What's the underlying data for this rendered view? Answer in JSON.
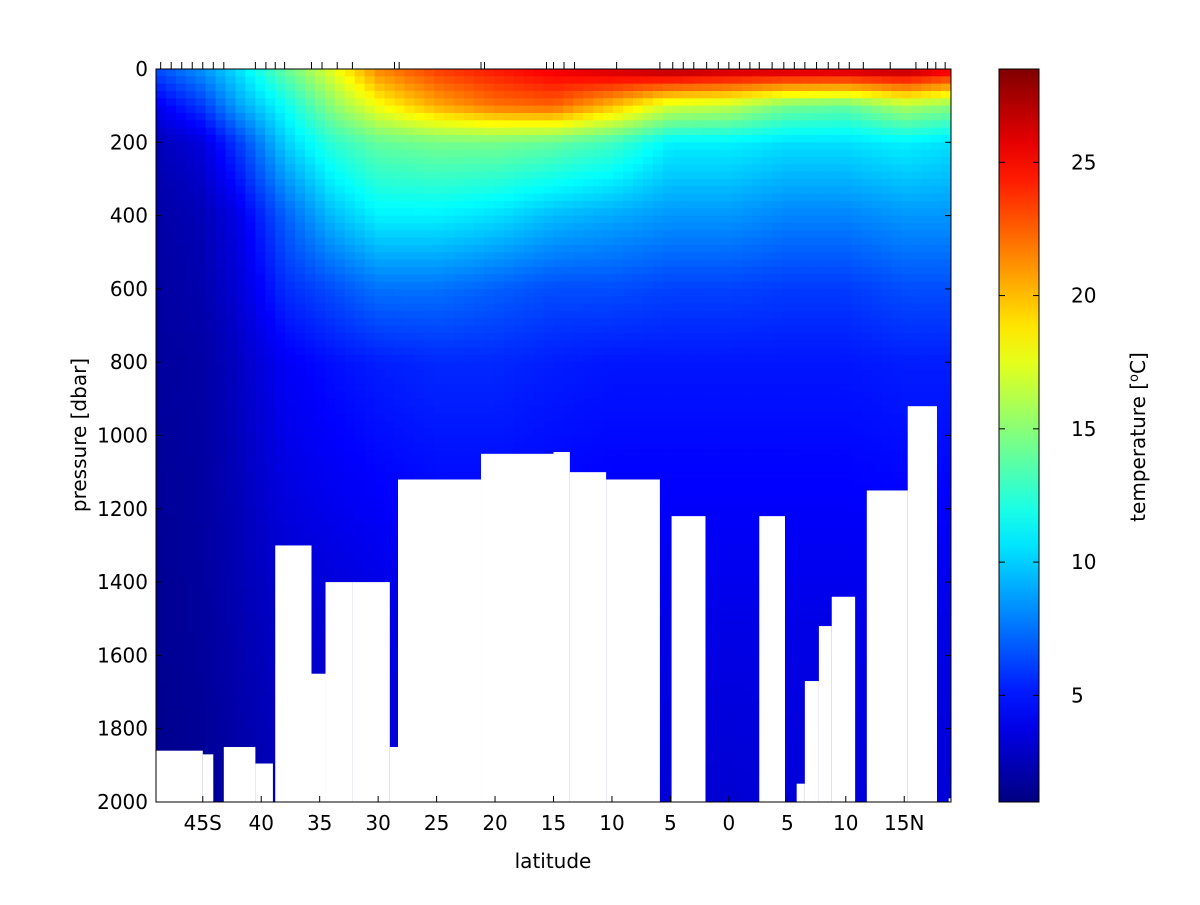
{
  "chart_data": {
    "type": "heatmap",
    "title": "",
    "xlabel": "latitude",
    "ylabel": "pressure [dbar]",
    "colorbar_label": "temperature [°C]",
    "colorbar_label_base": "temperature [",
    "colorbar_label_sup": "o",
    "colorbar_label_tail": "C]",
    "colormap": "jet",
    "y_reversed": true,
    "ylim": [
      0,
      2000
    ],
    "xlim": [
      -49,
      19
    ],
    "clim": [
      1,
      28.5
    ],
    "x_ticks": [
      {
        "value": -45,
        "label": "45S"
      },
      {
        "value": -40,
        "label": "40"
      },
      {
        "value": -35,
        "label": "35"
      },
      {
        "value": -30,
        "label": "30"
      },
      {
        "value": -25,
        "label": "25"
      },
      {
        "value": -20,
        "label": "20"
      },
      {
        "value": -15,
        "label": "15"
      },
      {
        "value": -10,
        "label": "10"
      },
      {
        "value": -5,
        "label": "5"
      },
      {
        "value": 0,
        "label": "0"
      },
      {
        "value": 5,
        "label": "5"
      },
      {
        "value": 10,
        "label": "10"
      },
      {
        "value": 15,
        "label": "15N"
      }
    ],
    "y_ticks": [
      {
        "value": 0,
        "label": "0"
      },
      {
        "value": 200,
        "label": "200"
      },
      {
        "value": 400,
        "label": "400"
      },
      {
        "value": 600,
        "label": "600"
      },
      {
        "value": 800,
        "label": "800"
      },
      {
        "value": 1000,
        "label": "1000"
      },
      {
        "value": 1200,
        "label": "1200"
      },
      {
        "value": 1400,
        "label": "1400"
      },
      {
        "value": 1600,
        "label": "1600"
      },
      {
        "value": 1800,
        "label": "1800"
      },
      {
        "value": 2000,
        "label": "2000"
      }
    ],
    "colorbar_ticks": [
      {
        "value": 5,
        "label": "5"
      },
      {
        "value": 10,
        "label": "10"
      },
      {
        "value": 15,
        "label": "15"
      },
      {
        "value": 20,
        "label": "20"
      },
      {
        "value": 25,
        "label": "25"
      }
    ],
    "station_latitudes": [
      -48.6,
      -47.7,
      -46.8,
      -45.9,
      -45.0,
      -44.1,
      -43.2,
      -40.5,
      -39.6,
      -38.8,
      -38.0,
      -35.7,
      -34.8,
      -33.5,
      -32.2,
      -28.6,
      -28.2,
      -21.2,
      -20.9,
      -15.6,
      -15.0,
      -14.1,
      -13.2,
      -9.6,
      -5.9,
      -4.8,
      -3.9,
      -3.0,
      -1.9,
      -0.9,
      0.0,
      0.9,
      1.8,
      2.6,
      3.7,
      4.7,
      5.6,
      6.5,
      7.5,
      8.5,
      9.4,
      10.3,
      11.5,
      13.8,
      16.0,
      17.0,
      17.7,
      18.5
    ],
    "temperature_field": [
      {
        "lat": -49,
        "profile": [
          [
            0,
            6.5
          ],
          [
            100,
            4.0
          ],
          [
            200,
            2.5
          ],
          [
            400,
            2.0
          ],
          [
            800,
            1.8
          ],
          [
            1500,
            1.5
          ],
          [
            2000,
            1.3
          ]
        ]
      },
      {
        "lat": -45,
        "profile": [
          [
            0,
            8.5
          ],
          [
            100,
            6.0
          ],
          [
            200,
            3.5
          ],
          [
            400,
            2.5
          ],
          [
            800,
            2.0
          ],
          [
            1500,
            1.8
          ],
          [
            2000,
            1.5
          ]
        ]
      },
      {
        "lat": -42,
        "profile": [
          [
            0,
            10.5
          ],
          [
            100,
            8.8
          ],
          [
            200,
            6.0
          ],
          [
            400,
            3.8
          ],
          [
            800,
            2.8
          ],
          [
            1500,
            2.3
          ],
          [
            2000,
            2.0
          ]
        ]
      },
      {
        "lat": -38,
        "profile": [
          [
            0,
            14.0
          ],
          [
            100,
            11.5
          ],
          [
            200,
            10.0
          ],
          [
            400,
            7.0
          ],
          [
            800,
            4.2
          ],
          [
            1500,
            3.0
          ],
          [
            2000,
            2.6
          ]
        ]
      },
      {
        "lat": -34,
        "profile": [
          [
            0,
            17.5
          ],
          [
            100,
            15.0
          ],
          [
            200,
            12.5
          ],
          [
            400,
            9.5
          ],
          [
            600,
            6.5
          ],
          [
            800,
            4.8
          ],
          [
            1500,
            3.3
          ],
          [
            2000,
            3.0
          ]
        ]
      },
      {
        "lat": -30,
        "profile": [
          [
            0,
            21.5
          ],
          [
            100,
            18.0
          ],
          [
            200,
            14.0
          ],
          [
            400,
            11.0
          ],
          [
            600,
            7.5
          ],
          [
            800,
            5.2
          ],
          [
            1500,
            3.6
          ],
          [
            2000,
            3.2
          ]
        ]
      },
      {
        "lat": -25,
        "profile": [
          [
            0,
            23.5
          ],
          [
            100,
            20.5
          ],
          [
            200,
            14.5
          ],
          [
            400,
            11.0
          ],
          [
            600,
            7.5
          ],
          [
            800,
            5.5
          ],
          [
            1500,
            3.8
          ]
        ]
      },
      {
        "lat": -20,
        "profile": [
          [
            0,
            24.5
          ],
          [
            100,
            22.0
          ],
          [
            200,
            14.5
          ],
          [
            400,
            10.5
          ],
          [
            600,
            7.0
          ],
          [
            800,
            5.5
          ],
          [
            1500,
            3.8
          ]
        ]
      },
      {
        "lat": -15,
        "profile": [
          [
            0,
            25.5
          ],
          [
            100,
            22.5
          ],
          [
            200,
            14.0
          ],
          [
            400,
            9.5
          ],
          [
            600,
            6.5
          ],
          [
            800,
            5.2
          ],
          [
            1500,
            3.8
          ]
        ]
      },
      {
        "lat": -10,
        "profile": [
          [
            0,
            26.5
          ],
          [
            100,
            20.0
          ],
          [
            200,
            13.0
          ],
          [
            400,
            9.0
          ],
          [
            600,
            6.5
          ],
          [
            800,
            5.0
          ],
          [
            1500,
            3.8
          ]
        ]
      },
      {
        "lat": -5,
        "profile": [
          [
            0,
            27.5
          ],
          [
            100,
            17.0
          ],
          [
            200,
            11.0
          ],
          [
            400,
            8.5
          ],
          [
            600,
            6.2
          ],
          [
            800,
            5.0
          ],
          [
            1500,
            3.8
          ],
          [
            2000,
            3.3
          ]
        ]
      },
      {
        "lat": 0,
        "profile": [
          [
            0,
            27.0
          ],
          [
            100,
            16.5
          ],
          [
            200,
            11.0
          ],
          [
            400,
            8.5
          ],
          [
            600,
            6.2
          ],
          [
            800,
            5.0
          ],
          [
            1500,
            3.8
          ],
          [
            2000,
            3.2
          ]
        ]
      },
      {
        "lat": 5,
        "profile": [
          [
            0,
            27.0
          ],
          [
            100,
            14.5
          ],
          [
            200,
            10.5
          ],
          [
            400,
            8.0
          ],
          [
            600,
            6.0
          ],
          [
            800,
            5.0
          ],
          [
            1500,
            3.8
          ],
          [
            2000,
            3.4
          ]
        ]
      },
      {
        "lat": 10,
        "profile": [
          [
            0,
            27.0
          ],
          [
            100,
            14.0
          ],
          [
            200,
            10.5
          ],
          [
            400,
            8.0
          ],
          [
            600,
            6.0
          ],
          [
            800,
            5.0
          ],
          [
            1500,
            3.8
          ],
          [
            2000,
            3.4
          ]
        ]
      },
      {
        "lat": 15,
        "profile": [
          [
            0,
            27.5
          ],
          [
            100,
            16.0
          ],
          [
            200,
            11.0
          ],
          [
            400,
            8.5
          ],
          [
            600,
            6.5
          ],
          [
            800,
            5.2
          ],
          [
            1500,
            3.8
          ],
          [
            2000,
            3.4
          ]
        ]
      },
      {
        "lat": 19,
        "profile": [
          [
            0,
            26.0
          ],
          [
            100,
            15.0
          ],
          [
            200,
            10.5
          ],
          [
            400,
            8.5
          ],
          [
            600,
            6.5
          ],
          [
            800,
            5.2
          ],
          [
            1500,
            3.8
          ],
          [
            2000,
            3.4
          ]
        ]
      }
    ],
    "seafloor_mask": [
      {
        "lat0": -49.0,
        "lat1": -45.0,
        "depth": 1860
      },
      {
        "lat0": -45.0,
        "lat1": -44.1,
        "depth": 1870
      },
      {
        "lat0": -43.2,
        "lat1": -40.5,
        "depth": 1850
      },
      {
        "lat0": -40.5,
        "lat1": -39.0,
        "depth": 1895
      },
      {
        "lat0": -38.8,
        "lat1": -35.7,
        "depth": 1300
      },
      {
        "lat0": -35.7,
        "lat1": -34.5,
        "depth": 1650
      },
      {
        "lat0": -34.5,
        "lat1": -32.2,
        "depth": 1400
      },
      {
        "lat0": -32.2,
        "lat1": -29.0,
        "depth": 1400
      },
      {
        "lat0": -29.0,
        "lat1": -28.3,
        "depth": 1850
      },
      {
        "lat0": -28.3,
        "lat1": -21.2,
        "depth": 1120
      },
      {
        "lat0": -21.2,
        "lat1": -15.0,
        "depth": 1050
      },
      {
        "lat0": -15.0,
        "lat1": -13.6,
        "depth": 1045
      },
      {
        "lat0": -13.6,
        "lat1": -10.5,
        "depth": 1100
      },
      {
        "lat0": -10.5,
        "lat1": -5.9,
        "depth": 1120
      },
      {
        "lat0": -4.9,
        "lat1": -2.0,
        "depth": 1220
      },
      {
        "lat0": 2.6,
        "lat1": 4.8,
        "depth": 1220
      },
      {
        "lat0": 5.8,
        "lat1": 6.5,
        "depth": 1950
      },
      {
        "lat0": 6.5,
        "lat1": 7.7,
        "depth": 1670
      },
      {
        "lat0": 7.7,
        "lat1": 8.8,
        "depth": 1520
      },
      {
        "lat0": 8.8,
        "lat1": 10.8,
        "depth": 1440
      },
      {
        "lat0": 11.8,
        "lat1": 15.3,
        "depth": 1150
      },
      {
        "lat0": 15.3,
        "lat1": 17.8,
        "depth": 920
      },
      {
        "lat0": 18.8,
        "lat1": 19.0,
        "depth": 1990
      }
    ]
  }
}
